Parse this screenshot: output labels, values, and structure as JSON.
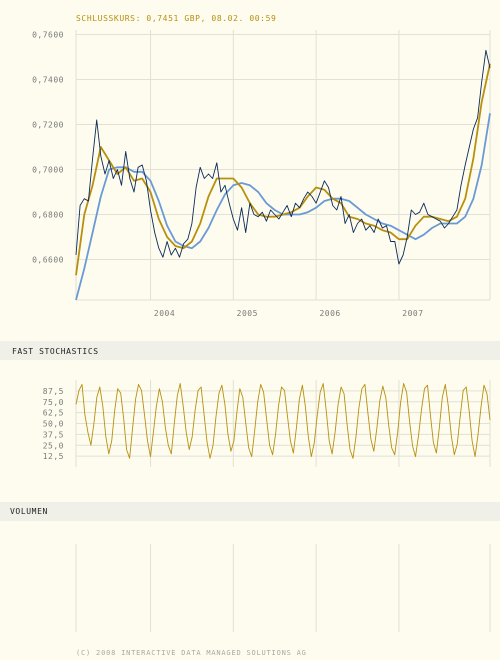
{
  "header": {
    "quote_label": "SCHLUSSKURS: 0,7451 GBP, 08.02. 00:59"
  },
  "colors": {
    "background": "#fdfcef",
    "grid": "#e2e1d4",
    "price": "#0d2a5a",
    "ma_short": "#b8900e",
    "ma_long": "#6a9ad6",
    "stochastic": "#b8900e",
    "section_band": "#f0efe8",
    "title": "#b8900e"
  },
  "sections": {
    "stochastics_title": "FAST STOCHASTICS",
    "volume_title": "VOLUMEN"
  },
  "footer": {
    "copyright": "(C) 2008 INTERACTIVE DATA MANAGED SOLUTIONS AG"
  },
  "chart_data": [
    {
      "type": "line",
      "name": "price",
      "title": "",
      "xlim": [
        2003.1,
        2008.1
      ],
      "ylim": [
        0.642,
        0.762
      ],
      "x_ticks": [
        {
          "value": 2004.0,
          "label": "2004"
        },
        {
          "value": 2005.0,
          "label": "2005"
        },
        {
          "value": 2006.0,
          "label": "2006"
        },
        {
          "value": 2007.0,
          "label": "2007"
        }
      ],
      "y_ticks": [
        {
          "value": 0.66,
          "label": "0,6600"
        },
        {
          "value": 0.68,
          "label": "0,6800"
        },
        {
          "value": 0.7,
          "label": "0,7000"
        },
        {
          "value": 0.72,
          "label": "0,7200"
        },
        {
          "value": 0.74,
          "label": "0,7400"
        },
        {
          "value": 0.76,
          "label": "0,7600"
        }
      ],
      "grid": true,
      "series": [
        {
          "x": [
            2003.1,
            2003.15,
            2003.2,
            2003.25,
            2003.3,
            2003.35,
            2003.4,
            2003.45,
            2003.5,
            2003.55,
            2003.6,
            2003.65,
            2003.7,
            2003.75,
            2003.8,
            2003.85,
            2003.9,
            2003.95,
            2004.0,
            2004.05,
            2004.1,
            2004.15,
            2004.2,
            2004.25,
            2004.3,
            2004.35,
            2004.4,
            2004.45,
            2004.5,
            2004.55,
            2004.6,
            2004.65,
            2004.7,
            2004.75,
            2004.8,
            2004.85,
            2004.9,
            2004.95,
            2005.0,
            2005.05,
            2005.1,
            2005.15,
            2005.2,
            2005.25,
            2005.3,
            2005.35,
            2005.4,
            2005.45,
            2005.5,
            2005.55,
            2005.6,
            2005.65,
            2005.7,
            2005.75,
            2005.8,
            2005.85,
            2005.9,
            2005.95,
            2006.0,
            2006.05,
            2006.1,
            2006.15,
            2006.2,
            2006.25,
            2006.3,
            2006.35,
            2006.4,
            2006.45,
            2006.5,
            2006.55,
            2006.6,
            2006.65,
            2006.7,
            2006.75,
            2006.8,
            2006.85,
            2006.9,
            2006.95,
            2007.0,
            2007.05,
            2007.1,
            2007.15,
            2007.2,
            2007.25,
            2007.3,
            2007.35,
            2007.4,
            2007.45,
            2007.5,
            2007.55,
            2007.6,
            2007.65,
            2007.7,
            2007.75,
            2007.8,
            2007.85,
            2007.9,
            2007.95,
            2008.0,
            2008.05,
            2008.1
          ],
          "y": [
            0.662,
            0.684,
            0.687,
            0.686,
            0.705,
            0.722,
            0.706,
            0.698,
            0.704,
            0.696,
            0.7,
            0.693,
            0.708,
            0.696,
            0.69,
            0.701,
            0.702,
            0.695,
            0.682,
            0.672,
            0.665,
            0.661,
            0.668,
            0.662,
            0.665,
            0.661,
            0.667,
            0.669,
            0.676,
            0.692,
            0.701,
            0.696,
            0.698,
            0.696,
            0.703,
            0.69,
            0.693,
            0.685,
            0.678,
            0.673,
            0.683,
            0.672,
            0.685,
            0.68,
            0.679,
            0.681,
            0.677,
            0.682,
            0.68,
            0.678,
            0.681,
            0.684,
            0.679,
            0.685,
            0.683,
            0.687,
            0.69,
            0.688,
            0.685,
            0.69,
            0.695,
            0.692,
            0.684,
            0.682,
            0.688,
            0.676,
            0.68,
            0.672,
            0.676,
            0.678,
            0.673,
            0.675,
            0.672,
            0.678,
            0.674,
            0.675,
            0.668,
            0.668,
            0.658,
            0.662,
            0.67,
            0.682,
            0.68,
            0.681,
            0.685,
            0.68,
            0.679,
            0.678,
            0.677,
            0.674,
            0.676,
            0.679,
            0.682,
            0.693,
            0.702,
            0.71,
            0.718,
            0.723,
            0.739,
            0.753,
            0.7451
          ]
        },
        {
          "x": [
            2003.1,
            2003.2,
            2003.3,
            2003.4,
            2003.5,
            2003.6,
            2003.7,
            2003.8,
            2003.9,
            2004.0,
            2004.1,
            2004.2,
            2004.3,
            2004.4,
            2004.5,
            2004.6,
            2004.7,
            2004.8,
            2004.9,
            2005.0,
            2005.1,
            2005.2,
            2005.3,
            2005.4,
            2005.5,
            2005.6,
            2005.7,
            2005.8,
            2005.9,
            2006.0,
            2006.1,
            2006.2,
            2006.3,
            2006.4,
            2006.5,
            2006.6,
            2006.7,
            2006.8,
            2006.9,
            2007.0,
            2007.1,
            2007.2,
            2007.3,
            2007.4,
            2007.5,
            2007.6,
            2007.7,
            2007.8,
            2007.9,
            2008.0,
            2008.1
          ],
          "y": [
            0.653,
            0.68,
            0.693,
            0.71,
            0.704,
            0.698,
            0.701,
            0.695,
            0.696,
            0.69,
            0.678,
            0.67,
            0.666,
            0.665,
            0.668,
            0.676,
            0.688,
            0.696,
            0.696,
            0.696,
            0.692,
            0.685,
            0.68,
            0.679,
            0.679,
            0.68,
            0.681,
            0.683,
            0.688,
            0.692,
            0.691,
            0.687,
            0.685,
            0.679,
            0.678,
            0.676,
            0.675,
            0.673,
            0.672,
            0.669,
            0.669,
            0.675,
            0.679,
            0.679,
            0.678,
            0.677,
            0.679,
            0.687,
            0.705,
            0.73,
            0.747
          ]
        },
        {
          "x": [
            2003.1,
            2003.2,
            2003.3,
            2003.4,
            2003.5,
            2003.6,
            2003.7,
            2003.8,
            2003.9,
            2004.0,
            2004.1,
            2004.2,
            2004.3,
            2004.4,
            2004.5,
            2004.6,
            2004.7,
            2004.8,
            2004.9,
            2005.0,
            2005.1,
            2005.2,
            2005.3,
            2005.4,
            2005.5,
            2005.6,
            2005.7,
            2005.8,
            2005.9,
            2006.0,
            2006.1,
            2006.2,
            2006.3,
            2006.4,
            2006.5,
            2006.6,
            2006.7,
            2006.8,
            2006.9,
            2007.0,
            2007.1,
            2007.2,
            2007.3,
            2007.4,
            2007.5,
            2007.6,
            2007.7,
            2007.8,
            2007.9,
            2008.0,
            2008.1
          ],
          "y": [
            0.642,
            0.656,
            0.672,
            0.688,
            0.7,
            0.701,
            0.701,
            0.699,
            0.699,
            0.695,
            0.686,
            0.675,
            0.668,
            0.666,
            0.665,
            0.668,
            0.674,
            0.682,
            0.689,
            0.693,
            0.694,
            0.693,
            0.69,
            0.685,
            0.682,
            0.68,
            0.68,
            0.68,
            0.681,
            0.683,
            0.686,
            0.687,
            0.687,
            0.686,
            0.683,
            0.68,
            0.678,
            0.676,
            0.675,
            0.673,
            0.671,
            0.669,
            0.671,
            0.674,
            0.676,
            0.676,
            0.676,
            0.679,
            0.687,
            0.702,
            0.725
          ]
        }
      ]
    },
    {
      "type": "line",
      "name": "fast-stochastics",
      "title": "FAST STOCHASTICS",
      "ylim": [
        0,
        100
      ],
      "y_ticks": [
        {
          "value": 87.5,
          "label": "87,5"
        },
        {
          "value": 75.0,
          "label": "75,0"
        },
        {
          "value": 62.5,
          "label": "62,5"
        },
        {
          "value": 50.0,
          "label": "50,0"
        },
        {
          "value": 37.5,
          "label": "37,5"
        },
        {
          "value": 25.0,
          "label": "25,0"
        },
        {
          "value": 12.5,
          "label": "12,5"
        }
      ],
      "grid": true,
      "series": [
        {
          "values": [
            72,
            88,
            95,
            60,
            40,
            25,
            50,
            80,
            92,
            70,
            35,
            15,
            30,
            65,
            90,
            85,
            55,
            20,
            10,
            45,
            78,
            95,
            88,
            60,
            30,
            12,
            40,
            70,
            90,
            75,
            45,
            25,
            15,
            50,
            82,
            96,
            70,
            40,
            20,
            35,
            65,
            88,
            92,
            60,
            28,
            10,
            25,
            58,
            85,
            94,
            72,
            38,
            18,
            30,
            62,
            90,
            80,
            50,
            22,
            12,
            42,
            75,
            95,
            86,
            55,
            25,
            14,
            38,
            70,
            92,
            88,
            58,
            30,
            16,
            45,
            78,
            94,
            70,
            35,
            12,
            28,
            60,
            86,
            96,
            65,
            30,
            15,
            40,
            72,
            92,
            84,
            50,
            20,
            10,
            35,
            68,
            90,
            95,
            62,
            32,
            18,
            44,
            76,
            93,
            80,
            48,
            22,
            14,
            40,
            74,
            96,
            86,
            52,
            24,
            12,
            36,
            66,
            90,
            94,
            60,
            28,
            16,
            46,
            80,
            95,
            70,
            36,
            14,
            26,
            58,
            88,
            92,
            64,
            30,
            12,
            38,
            70,
            94,
            84,
            54
          ]
        }
      ]
    },
    {
      "type": "bar",
      "name": "volume",
      "title": "VOLUMEN",
      "grid": true,
      "series": []
    }
  ]
}
